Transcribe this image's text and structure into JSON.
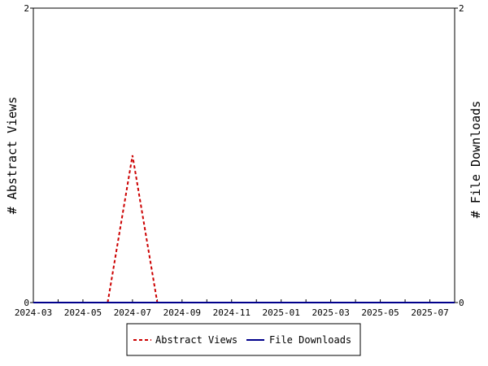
{
  "chart_data": {
    "type": "line",
    "title": "",
    "xlabel": "",
    "ylabel_left": "# Abstract Views",
    "ylabel_right": "# File Downloads",
    "x_tick_labels": [
      "2024-03",
      "2024-05",
      "2024-07",
      "2024-09",
      "2024-11",
      "2025-01",
      "2025-03",
      "2025-05",
      "2025-07"
    ],
    "x_months": [
      "2024-03",
      "2024-04",
      "2024-05",
      "2024-06",
      "2024-07",
      "2024-08",
      "2024-09",
      "2024-10",
      "2024-11",
      "2024-12",
      "2025-01",
      "2025-02",
      "2025-03",
      "2025-04",
      "2025-05",
      "2025-06",
      "2025-07",
      "2025-08"
    ],
    "ylim_left": [
      0,
      2
    ],
    "ylim_right": [
      0,
      2
    ],
    "y_tick_labels_left": [
      "0",
      "2"
    ],
    "y_tick_labels_right": [
      "0",
      "2"
    ],
    "grid": false,
    "legend_position": "bottom",
    "series": [
      {
        "name": "Abstract Views",
        "axis": "left",
        "color": "#cc0000",
        "style": "dashed",
        "points": [
          {
            "x": "2024-06",
            "y": 0
          },
          {
            "x": "2024-07",
            "y": 1
          },
          {
            "x": "2024-08",
            "y": 0
          }
        ]
      },
      {
        "name": "File Downloads",
        "axis": "right",
        "color": "#00008b",
        "style": "solid",
        "points": [
          {
            "x": "2024-03",
            "y": 0
          },
          {
            "x": "2025-08",
            "y": 0
          }
        ]
      }
    ]
  }
}
